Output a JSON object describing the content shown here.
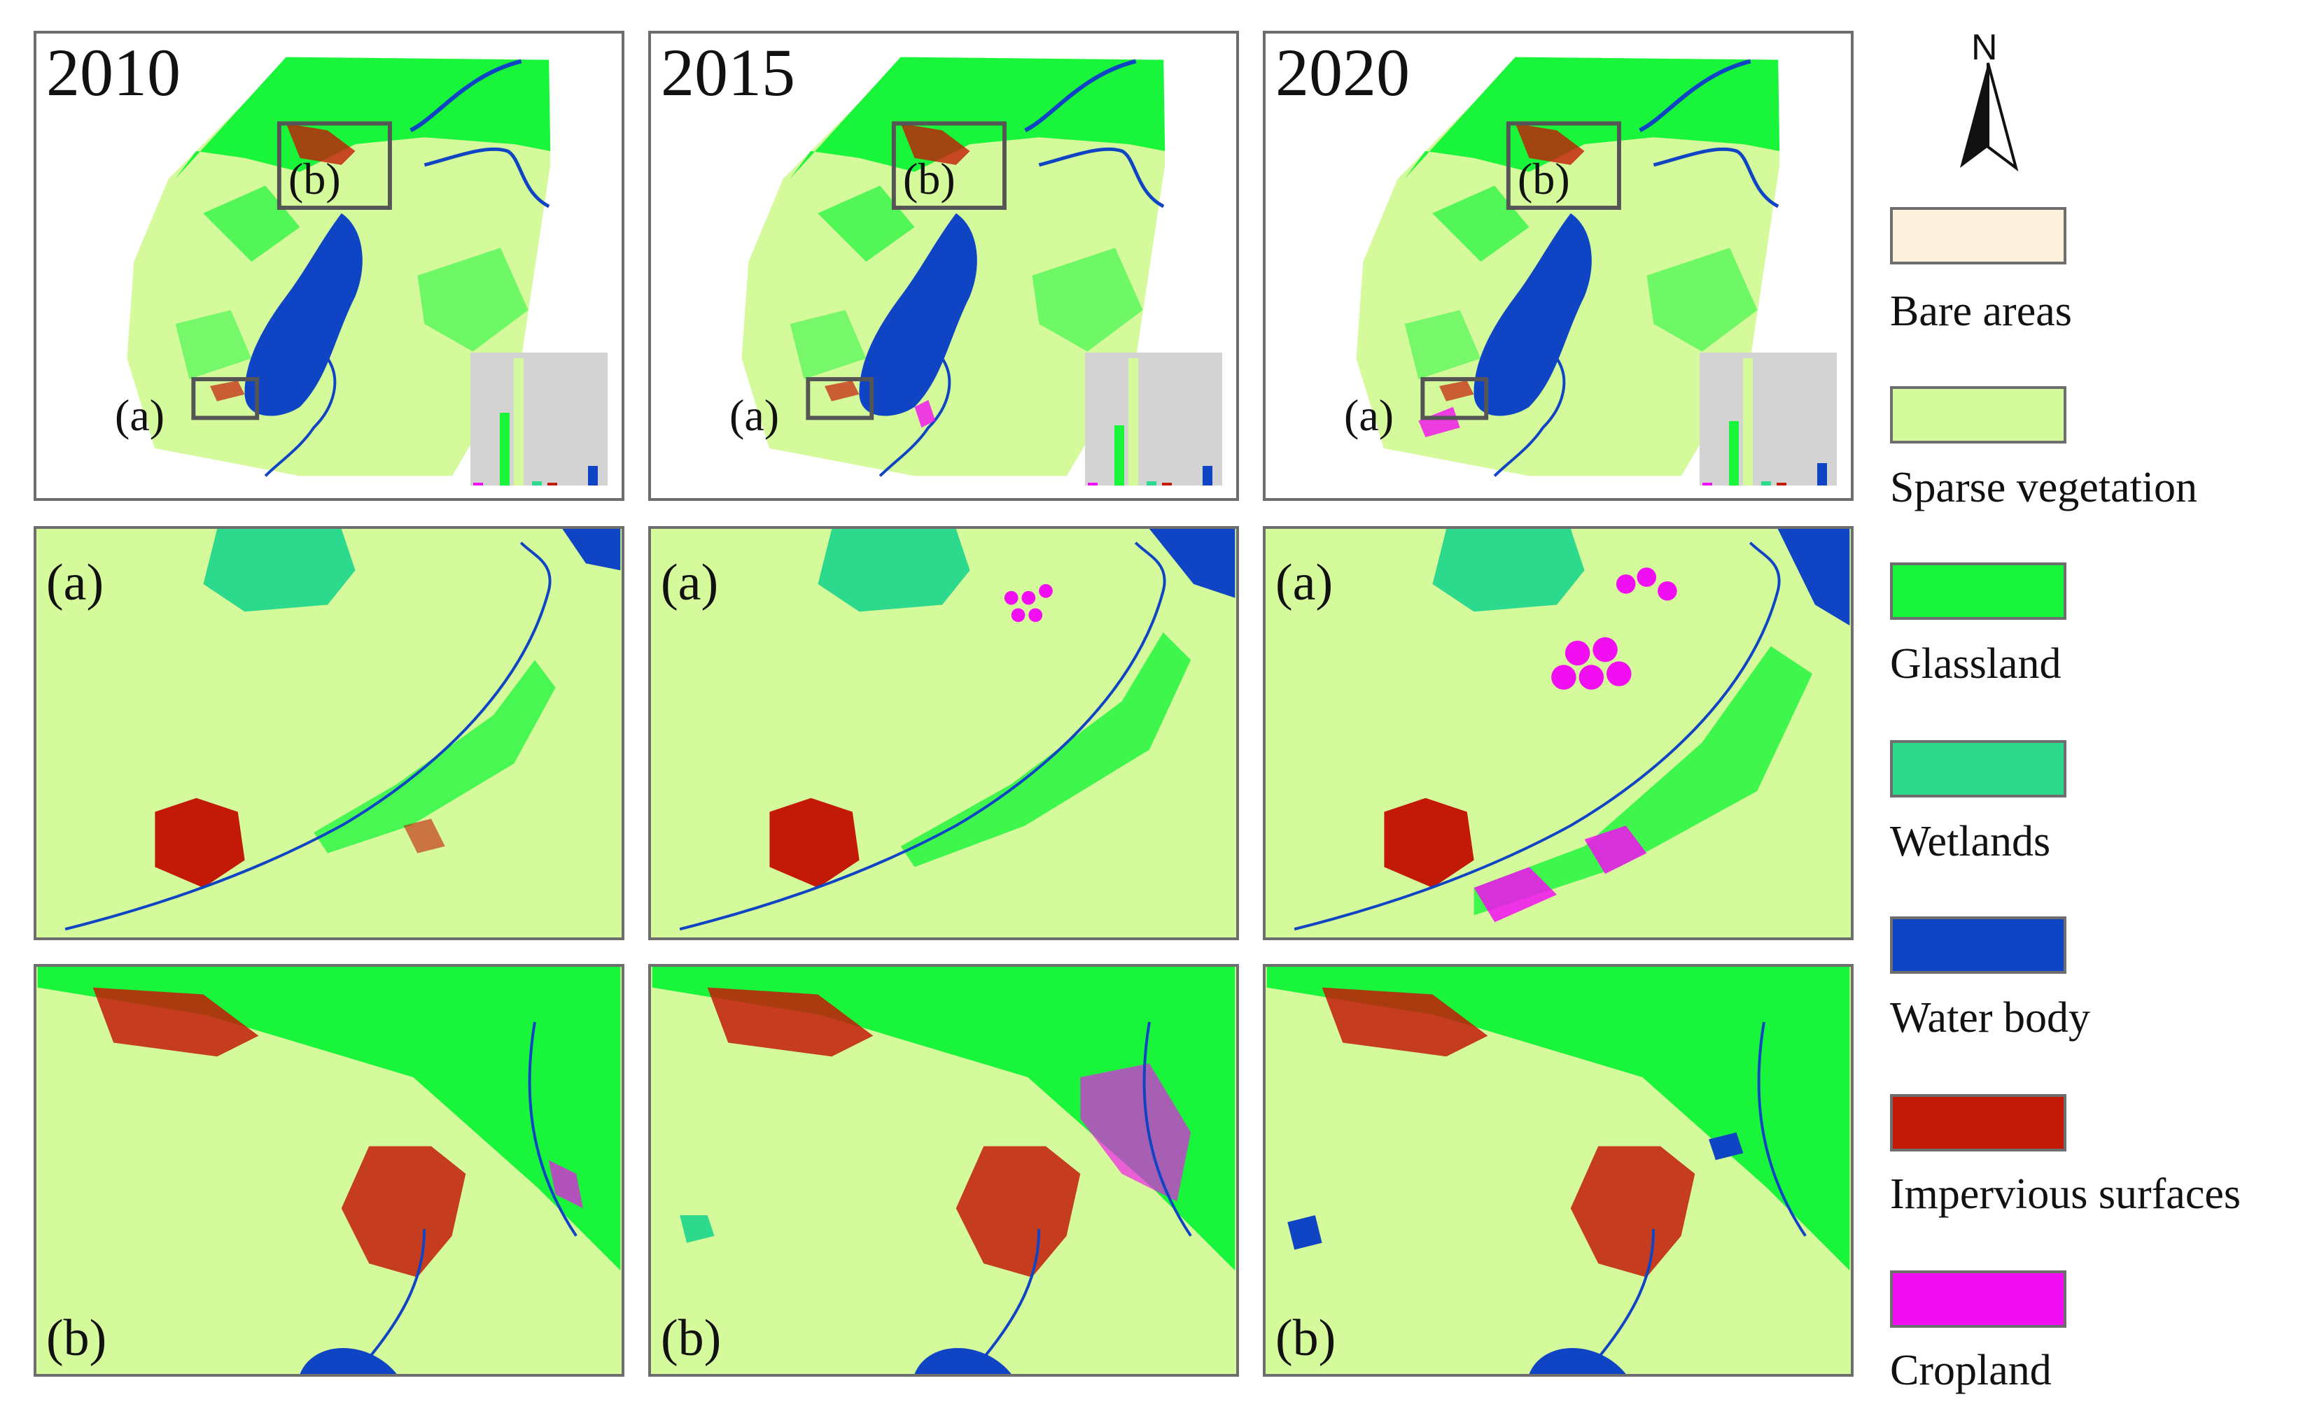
{
  "years": [
    "2010",
    "2015",
    "2020"
  ],
  "labels": {
    "a": "(a)",
    "b": "(b)"
  },
  "north": "N",
  "legend": [
    {
      "label": "Bare areas",
      "color": "#fcf1dc"
    },
    {
      "label": "Sparse vegetation",
      "color": "#d5fa9b"
    },
    {
      "label": "Glassland",
      "color": "#19f53a"
    },
    {
      "label": "Wetlands",
      "color": "#2dd98c"
    },
    {
      "label": "Water body",
      "color": "#0f44c4"
    },
    {
      "label": "Impervious surfaces",
      "color": "#c31a08"
    },
    {
      "label": "Cropland",
      "color": "#f20ef2"
    }
  ],
  "colors": {
    "bare": "#fcf1dc",
    "sparse": "#d5fa9b",
    "grass": "#19f53a",
    "wetland": "#2dd98c",
    "water": "#0f44c4",
    "urban": "#c31a08",
    "crop": "#f20ef2",
    "frame": "#6e6e6e",
    "inset_bg": "#d3d3d3"
  }
}
